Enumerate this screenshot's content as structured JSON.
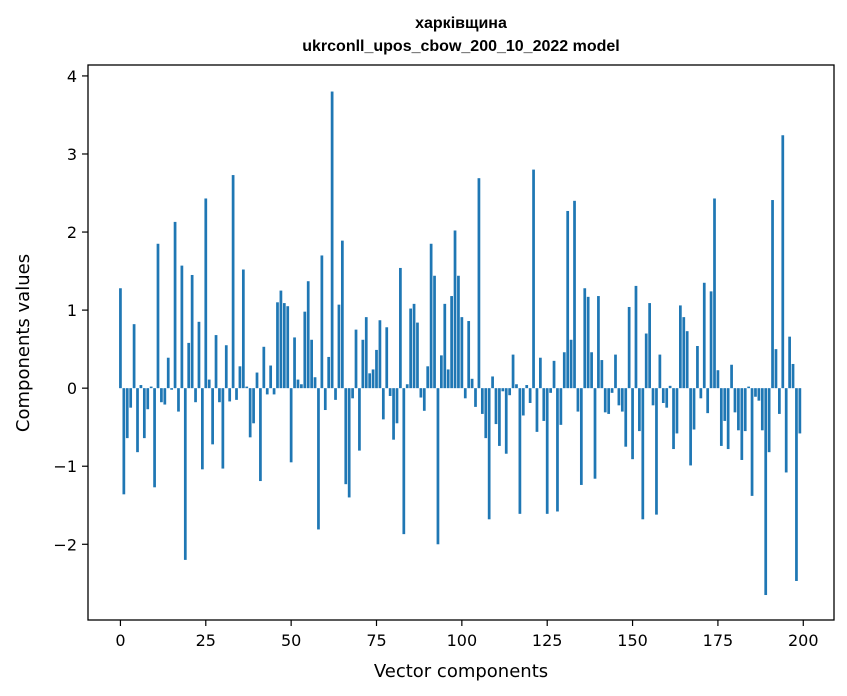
{
  "chart_data": {
    "type": "bar",
    "title": "харківщина",
    "subtitle": "ukrconll_upos_cbow_200_10_2022 model",
    "xlabel": "Vector components",
    "ylabel": "Components values",
    "xlim": [
      -9.5,
      209
    ],
    "ylim": [
      -2.97,
      4.14
    ],
    "xticks": [
      0,
      25,
      50,
      75,
      100,
      125,
      150,
      175,
      200
    ],
    "xtick_labels": [
      "0",
      "25",
      "50",
      "75",
      "100",
      "125",
      "150",
      "175",
      "200"
    ],
    "yticks": [
      -2,
      -1,
      0,
      1,
      2,
      3,
      4
    ],
    "ytick_labels": [
      "−2",
      "−1",
      "0",
      "1",
      "2",
      "3",
      "4"
    ],
    "grid": false,
    "legend": "none",
    "bar_color": "#1f77b4",
    "values": [
      1.28,
      -1.36,
      -0.64,
      -0.25,
      0.82,
      -0.82,
      0.04,
      -0.64,
      -0.27,
      0.02,
      -1.27,
      1.85,
      -0.18,
      -0.21,
      0.39,
      -0.02,
      2.13,
      -0.3,
      1.57,
      -2.2,
      0.58,
      1.45,
      -0.18,
      0.85,
      -1.04,
      2.43,
      0.11,
      -0.72,
      0.68,
      -0.18,
      -1.03,
      0.55,
      -0.17,
      2.73,
      -0.15,
      0.28,
      1.52,
      0.02,
      -0.63,
      -0.45,
      0.2,
      -1.19,
      0.53,
      -0.08,
      0.29,
      -0.08,
      1.1,
      1.25,
      1.09,
      1.05,
      -0.95,
      0.65,
      0.11,
      0.05,
      0.98,
      1.37,
      0.62,
      0.14,
      -1.81,
      1.7,
      -0.28,
      0.4,
      3.8,
      -0.15,
      1.07,
      1.89,
      -1.23,
      -1.4,
      -0.13,
      0.75,
      -0.8,
      0.62,
      0.91,
      0.19,
      0.24,
      0.49,
      0.87,
      -0.4,
      0.78,
      -0.1,
      -0.66,
      -0.45,
      1.54,
      -1.87,
      0.05,
      1.02,
      1.08,
      0.84,
      -0.12,
      -0.29,
      0.28,
      1.85,
      1.44,
      -2.0,
      0.42,
      1.08,
      0.24,
      1.18,
      2.02,
      1.44,
      0.91,
      -0.13,
      0.86,
      0.12,
      -0.24,
      2.69,
      -0.33,
      -0.64,
      -1.68,
      0.15,
      -0.46,
      -0.74,
      -0.04,
      -0.84,
      -0.09,
      0.43,
      0.05,
      -1.61,
      -0.35,
      0.04,
      -0.19,
      2.8,
      -0.56,
      0.39,
      -0.42,
      -1.61,
      -0.06,
      0.35,
      -1.58,
      -0.47,
      0.46,
      2.27,
      0.62,
      2.4,
      -0.3,
      -1.24,
      1.28,
      1.17,
      0.46,
      -1.16,
      1.18,
      0.36,
      -0.31,
      -0.33,
      -0.06,
      0.43,
      -0.22,
      -0.3,
      -0.75,
      1.04,
      -0.91,
      1.31,
      -0.55,
      -1.68,
      0.7,
      1.09,
      -0.22,
      -1.62,
      0.43,
      -0.19,
      -0.25,
      0.03,
      -0.78,
      -0.58,
      1.06,
      0.91,
      0.73,
      -0.99,
      -0.53,
      0.54,
      -0.13,
      1.35,
      -0.32,
      1.24,
      2.43,
      0.23,
      -0.74,
      -0.42,
      -0.78,
      0.3,
      -0.31,
      -0.54,
      -0.92,
      -0.55,
      0.02,
      -1.38,
      -0.11,
      -0.16,
      -0.54,
      -2.65,
      -0.82,
      2.41,
      0.5,
      -0.33,
      3.24,
      -1.08,
      0.66,
      0.31,
      -2.47,
      -0.58
    ]
  }
}
